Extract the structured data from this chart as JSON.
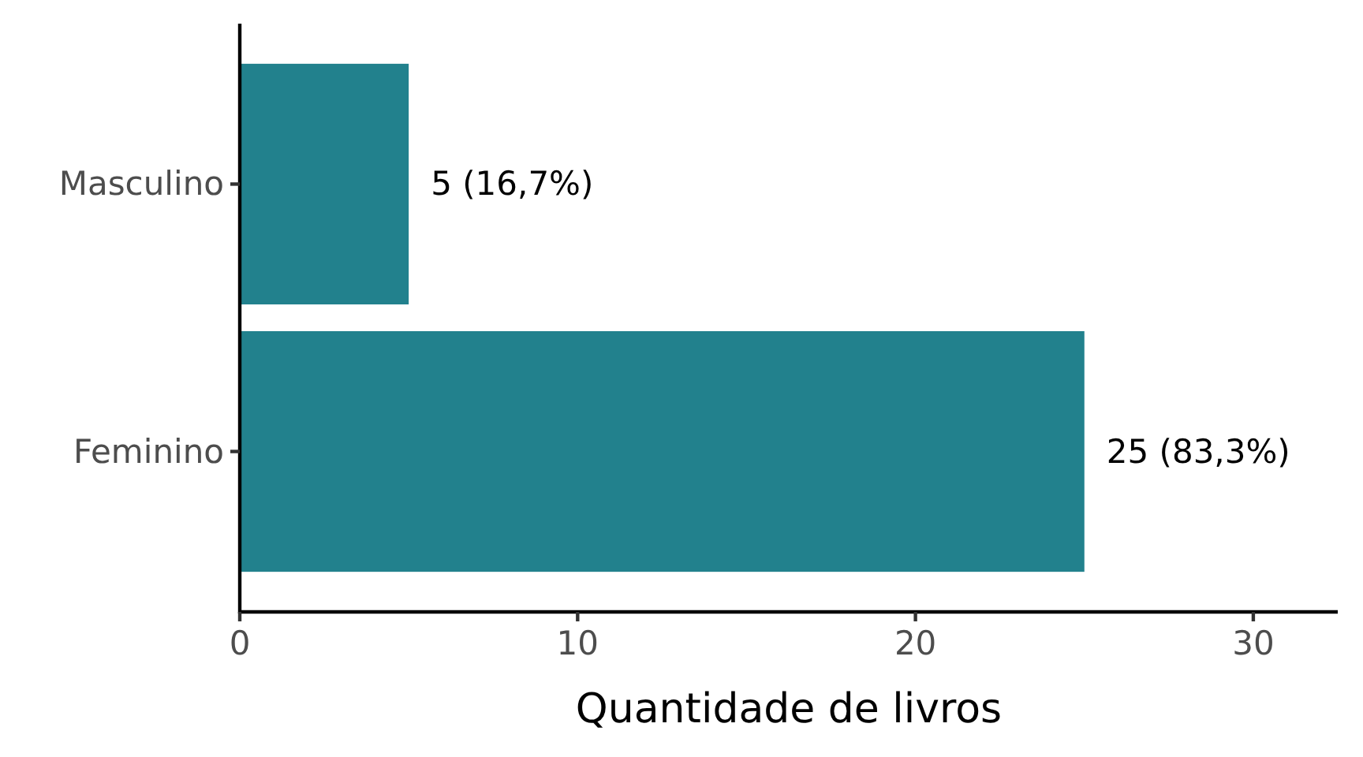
{
  "chart_data": {
    "type": "bar",
    "orientation": "horizontal",
    "categories": [
      "Masculino",
      "Feminino"
    ],
    "values": [
      5,
      25
    ],
    "color": "#22818d",
    "value_labels": [
      "5 (16,7%)",
      "25 (83,3%)"
    ],
    "xlabel": "Quantidade de livros",
    "xlim": [
      0,
      32.5
    ],
    "xticks": [
      0,
      10,
      20,
      30
    ]
  }
}
